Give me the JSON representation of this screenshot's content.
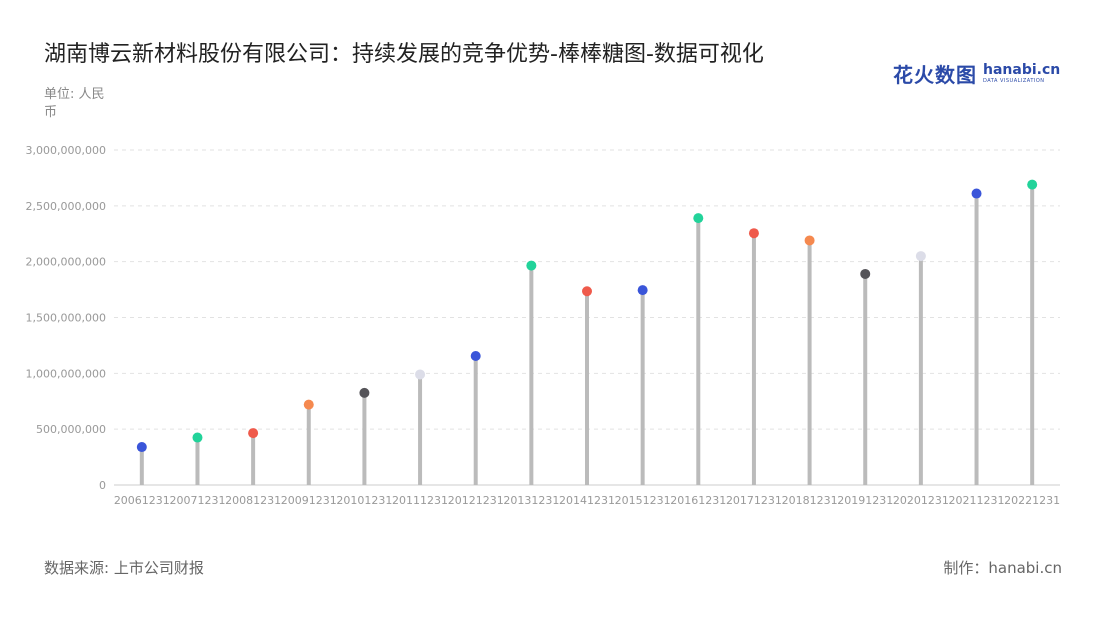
{
  "header": {
    "title": "湖南博云新材料股份有限公司：持续发展的竞争优势-棒棒糖图-数据可视化",
    "unit": "单位: 人民币"
  },
  "logo": {
    "cn": "花火数图",
    "en": "hanabi.cn",
    "sub": "DATA VISUALIZATION"
  },
  "footer": {
    "source": "数据来源: 上市公司财报",
    "credit": "制作：hanabi.cn"
  },
  "chart_data": {
    "type": "lollipop",
    "categories": [
      "20061231",
      "20071231",
      "20081231",
      "20091231",
      "20101231",
      "20111231",
      "20121231",
      "20131231",
      "20141231",
      "20151231",
      "20161231",
      "20171231",
      "20181231",
      "20191231",
      "20201231",
      "20211231",
      "20221231"
    ],
    "values": [
      340000000,
      425000000,
      465000000,
      720000000,
      825000000,
      990000000,
      1155000000,
      1965000000,
      1735000000,
      1745000000,
      2390000000,
      2255000000,
      2190000000,
      1890000000,
      2050000000,
      2610000000,
      2690000000
    ],
    "dot_colors": [
      "#3a55d9",
      "#22d39a",
      "#ef5a4b",
      "#f5894f",
      "#555459",
      "#dcdde8",
      "#3a55d9",
      "#22d39a",
      "#ef5a4b",
      "#3a55d9",
      "#22d39a",
      "#ef5a4b",
      "#f5894f",
      "#555459",
      "#dcdde8",
      "#3a55d9",
      "#22d39a"
    ],
    "y_ticks": [
      "0",
      "500,000,000",
      "1,000,000,000",
      "1,500,000,000",
      "2,000,000,000",
      "2,500,000,000",
      "3,000,000,000"
    ],
    "ylim": [
      0,
      3000000000
    ],
    "grid": true,
    "stem_color": "#bbbbbb"
  }
}
